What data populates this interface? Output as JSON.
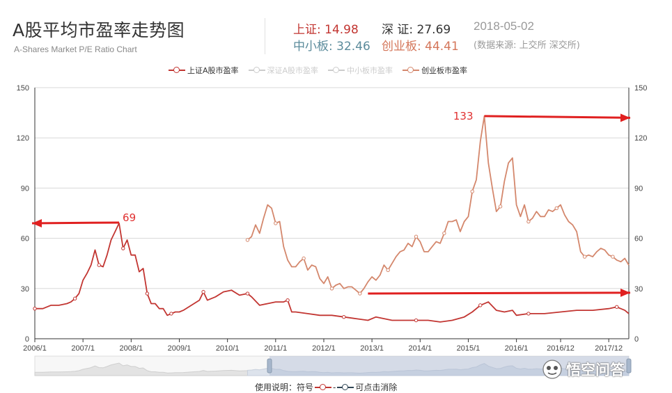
{
  "header": {
    "title": "A股平均市盈率走势图",
    "subtitle": "A-Shares Market P/E Ratio Chart",
    "stats": [
      {
        "key": "上证",
        "value": "14.98",
        "color": "#c23531"
      },
      {
        "key": "深 证",
        "value": "27.69",
        "color": "#333333"
      },
      {
        "key": "中小板",
        "value": "32.46",
        "color": "#5b8b9b"
      },
      {
        "key": "创业板",
        "value": "44.41",
        "color": "#d4765a"
      }
    ],
    "date": "2018-05-02",
    "source": "(数据来源: 上交所 深交所)"
  },
  "legend": [
    {
      "label": "上证A股市盈率",
      "color": "#c23531",
      "active": true
    },
    {
      "label": "深证A股市盈率",
      "color": "#cccccc",
      "active": false
    },
    {
      "label": "中小板市盈率",
      "color": "#cccccc",
      "active": false
    },
    {
      "label": "创业板市盈率",
      "color": "#d4876c",
      "active": true
    }
  ],
  "footer": {
    "prefix": "使用说明：符号",
    "suffix": "可点击消除"
  },
  "watermark": {
    "text": "悟空问答"
  },
  "annotations": [
    {
      "text": "69",
      "color": "#e03030"
    },
    {
      "text": "133",
      "color": "#e03030"
    }
  ],
  "chart_data": {
    "type": "line",
    "x_tick_labels": [
      "2006/1",
      "2007/1",
      "2008/1",
      "2009/1",
      "2010/1",
      "2011/1",
      "2012/1",
      "2013/1",
      "2014/1",
      "2015/1",
      "2016/1",
      "2016/12",
      "2017/12"
    ],
    "y_ticks": [
      0,
      30,
      60,
      90,
      120,
      150
    ],
    "ylim": [
      0,
      150
    ],
    "xlim": [
      "2006-01",
      "2018-05"
    ],
    "grid": true,
    "series": [
      {
        "name": "上证A股市盈率",
        "color": "#c23531",
        "x": [
          "2006-01",
          "2006-03",
          "2006-05",
          "2006-07",
          "2006-09",
          "2006-10",
          "2006-11",
          "2006-12",
          "2007-01",
          "2007-02",
          "2007-03",
          "2007-04",
          "2007-05",
          "2007-06",
          "2007-07",
          "2007-08",
          "2007-09",
          "2007-10",
          "2007-11",
          "2007-12",
          "2008-01",
          "2008-02",
          "2008-03",
          "2008-04",
          "2008-05",
          "2008-06",
          "2008-07",
          "2008-08",
          "2008-09",
          "2008-10",
          "2008-11",
          "2008-12",
          "2009-01",
          "2009-02",
          "2009-04",
          "2009-06",
          "2009-07",
          "2009-08",
          "2009-10",
          "2009-12",
          "2010-02",
          "2010-04",
          "2010-06",
          "2010-07",
          "2010-09",
          "2010-11",
          "2011-01",
          "2011-03",
          "2011-04",
          "2011-05",
          "2011-06",
          "2011-09",
          "2011-12",
          "2012-03",
          "2012-06",
          "2012-09",
          "2012-12",
          "2013-02",
          "2013-06",
          "2013-09",
          "2013-12",
          "2014-03",
          "2014-06",
          "2014-09",
          "2014-12",
          "2015-02",
          "2015-04",
          "2015-06",
          "2015-08",
          "2015-10",
          "2015-12",
          "2016-01",
          "2016-04",
          "2016-08",
          "2016-12",
          "2017-04",
          "2017-08",
          "2017-12",
          "2018-02",
          "2018-04",
          "2018-05"
        ],
        "values": [
          18,
          18,
          20,
          20,
          21,
          22,
          24,
          27,
          35,
          39,
          44,
          53,
          44,
          43,
          50,
          59,
          64,
          69,
          54,
          59,
          50,
          50,
          40,
          42,
          27,
          21,
          21,
          18,
          18,
          14,
          15,
          16,
          16,
          17,
          20,
          23,
          28,
          23,
          25,
          28,
          29,
          26,
          27,
          25,
          20,
          21,
          22,
          22,
          23,
          16,
          16,
          15,
          14,
          14,
          13,
          12,
          11,
          13,
          11,
          11,
          11,
          11,
          10,
          11,
          13,
          16,
          20,
          22,
          17,
          16,
          17,
          14,
          15,
          15,
          16,
          17,
          17,
          18,
          19,
          17,
          15
        ]
      },
      {
        "name": "创业板市盈率",
        "color": "#d4876c",
        "x": [
          "2010-06",
          "2010-07",
          "2010-08",
          "2010-09",
          "2010-10",
          "2010-11",
          "2010-12",
          "2011-01",
          "2011-02",
          "2011-03",
          "2011-04",
          "2011-05",
          "2011-06",
          "2011-07",
          "2011-08",
          "2011-09",
          "2011-10",
          "2011-11",
          "2011-12",
          "2012-01",
          "2012-02",
          "2012-03",
          "2012-04",
          "2012-05",
          "2012-06",
          "2012-07",
          "2012-08",
          "2012-09",
          "2012-10",
          "2012-11",
          "2012-12",
          "2013-01",
          "2013-02",
          "2013-03",
          "2013-04",
          "2013-05",
          "2013-06",
          "2013-07",
          "2013-08",
          "2013-09",
          "2013-10",
          "2013-11",
          "2013-12",
          "2014-01",
          "2014-02",
          "2014-03",
          "2014-04",
          "2014-05",
          "2014-06",
          "2014-07",
          "2014-08",
          "2014-09",
          "2014-10",
          "2014-11",
          "2014-12",
          "2015-01",
          "2015-02",
          "2015-03",
          "2015-04",
          "2015-05",
          "2015-06",
          "2015-07",
          "2015-08",
          "2015-09",
          "2015-10",
          "2015-11",
          "2015-12",
          "2016-01",
          "2016-02",
          "2016-03",
          "2016-04",
          "2016-05",
          "2016-06",
          "2016-07",
          "2016-08",
          "2016-09",
          "2016-10",
          "2016-11",
          "2016-12",
          "2017-01",
          "2017-02",
          "2017-03",
          "2017-04",
          "2017-05",
          "2017-06",
          "2017-07",
          "2017-08",
          "2017-09",
          "2017-10",
          "2017-11",
          "2017-12",
          "2018-01",
          "2018-02",
          "2018-03",
          "2018-04",
          "2018-05"
        ],
        "values": [
          59,
          61,
          68,
          63,
          72,
          80,
          78,
          69,
          70,
          55,
          47,
          43,
          43,
          46,
          48,
          41,
          44,
          43,
          36,
          33,
          37,
          30,
          32,
          33,
          30,
          31,
          31,
          29,
          27,
          30,
          34,
          37,
          35,
          38,
          44,
          41,
          45,
          49,
          52,
          53,
          57,
          55,
          61,
          58,
          52,
          52,
          55,
          58,
          57,
          63,
          70,
          70,
          71,
          64,
          70,
          73,
          88,
          95,
          118,
          133,
          105,
          90,
          76,
          79,
          94,
          105,
          108,
          80,
          73,
          80,
          70,
          72,
          76,
          73,
          73,
          77,
          76,
          78,
          80,
          74,
          70,
          68,
          64,
          52,
          49,
          50,
          49,
          52,
          54,
          53,
          50,
          49,
          47,
          46,
          48,
          44
        ]
      }
    ]
  }
}
